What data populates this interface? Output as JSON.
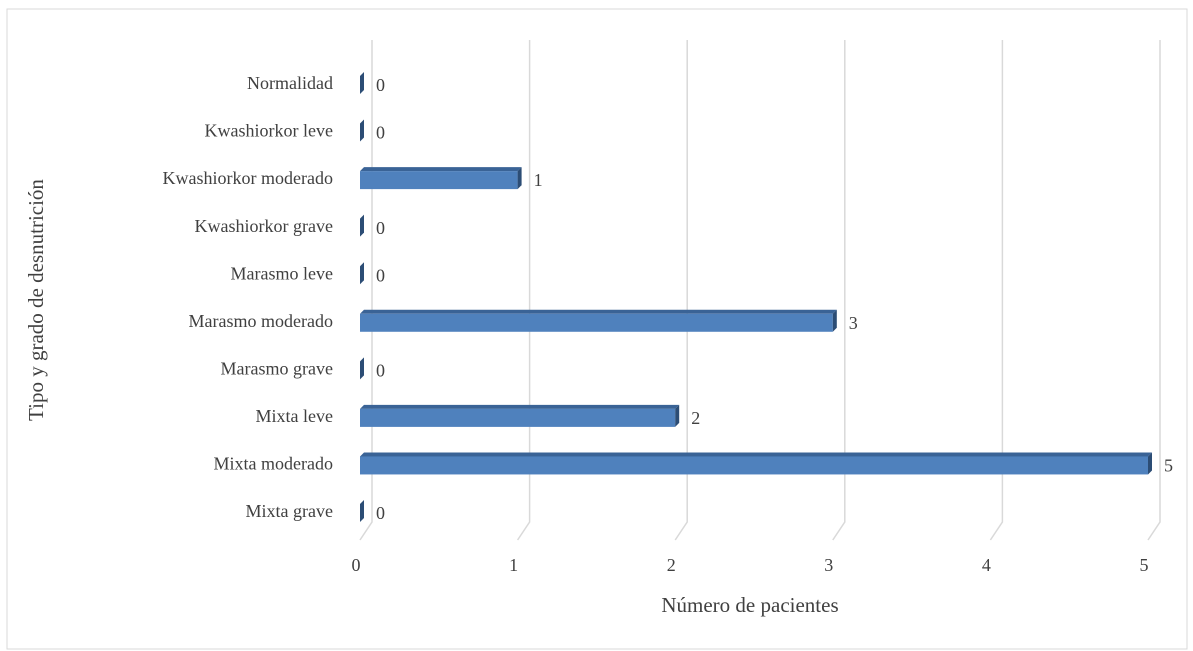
{
  "chart_data": {
    "type": "bar",
    "orientation": "horizontal",
    "xlabel": "Número de pacientes",
    "ylabel": "Tipo y grado de desnutrición",
    "categories": [
      "Normalidad",
      "Kwashiorkor leve",
      "Kwashiorkor moderado",
      "Kwashiorkor grave",
      "Marasmo leve",
      "Marasmo moderado",
      "Marasmo grave",
      "Mixta leve",
      "Mixta moderado",
      "Mixta grave"
    ],
    "values": [
      0,
      0,
      1,
      0,
      0,
      3,
      0,
      2,
      5,
      0
    ],
    "color": "#4f81bd",
    "xlim": [
      0,
      5
    ],
    "xticks": [
      0,
      1,
      2,
      3,
      4,
      5
    ],
    "grid": true
  }
}
